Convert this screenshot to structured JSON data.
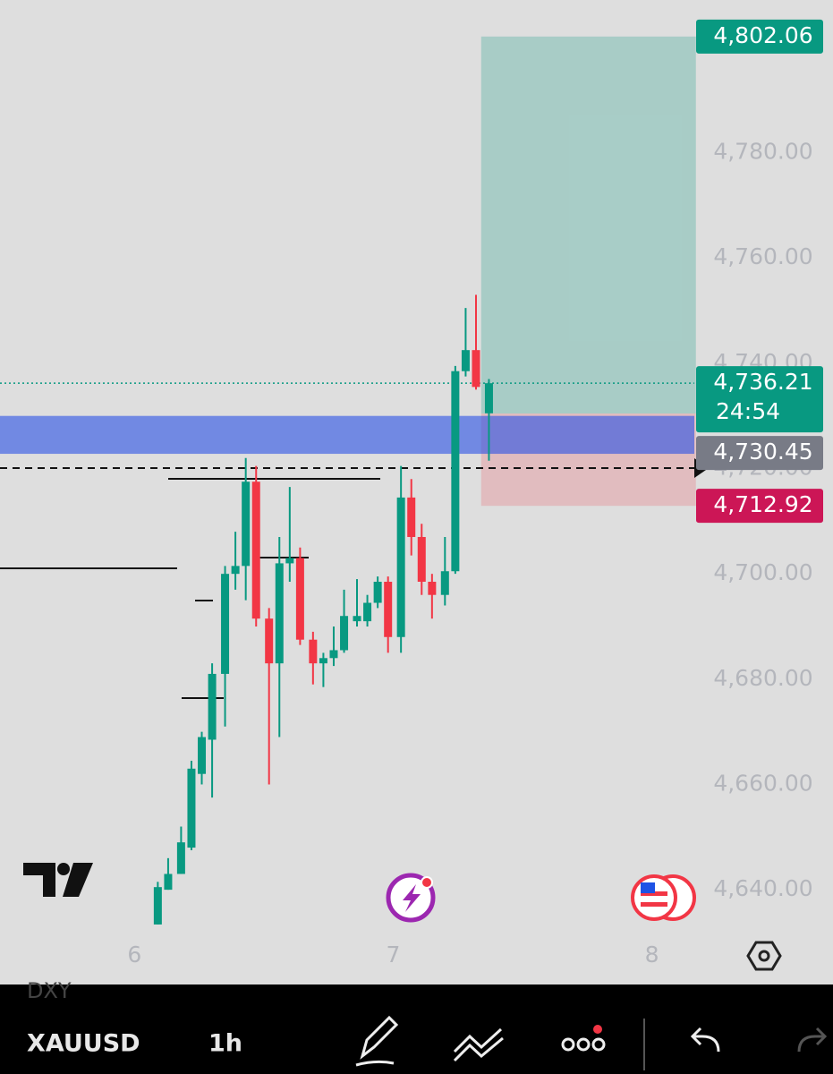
{
  "chart_data": {
    "type": "candlestick",
    "x": [
      6.09,
      6.13,
      6.18,
      6.22,
      6.26,
      6.3,
      6.35,
      6.39,
      6.43,
      6.47,
      6.52,
      6.56,
      6.6,
      6.64,
      6.69,
      6.73,
      6.77,
      6.81,
      6.86,
      6.9,
      6.94,
      6.98,
      7.03,
      7.07,
      7.11,
      7.15,
      7.2,
      7.24,
      7.28,
      7.32,
      7.37
    ],
    "open": [
      4633.4,
      4640,
      4643,
      4648,
      4662,
      4668.5,
      4681,
      4700,
      4701.5,
      4717.5,
      4691.5,
      4683,
      4702,
      4703,
      4687.5,
      4683,
      4684,
      4685.5,
      4691,
      4691,
      4694.5,
      4698.5,
      4688,
      4714.5,
      4707,
      4698.5,
      4696,
      4700.5,
      4738.5,
      4742.5,
      4730.5
    ],
    "high": [
      4641.5,
      4646,
      4652,
      4664.5,
      4670,
      4683,
      4701.5,
      4708,
      4722,
      4720.5,
      4693.5,
      4707,
      4716.5,
      4705,
      4689,
      4685,
      4690,
      4697,
      4699,
      4696,
      4699.5,
      4699.5,
      4720.5,
      4718,
      4709.5,
      4700,
      4707,
      4739.5,
      4750.5,
      4753,
      4737
    ],
    "low": [
      4633.4,
      4640,
      4643,
      4647.5,
      4660,
      4657.5,
      4671,
      4697,
      4695,
      4690,
      4660,
      4669,
      4698.5,
      4686.5,
      4679,
      4678.5,
      4682.5,
      4685,
      4690,
      4690,
      4693.5,
      4685,
      4685,
      4703.5,
      4696,
      4691.5,
      4694,
      4700,
      4737.5,
      4735,
      4721.5
    ],
    "close": [
      4640.5,
      4643,
      4649,
      4663,
      4669,
      4681,
      4700,
      4701.5,
      4717.5,
      4691.5,
      4683,
      4702,
      4703,
      4687.5,
      4683,
      4684,
      4685.5,
      4692,
      4692,
      4694.5,
      4698.5,
      4688,
      4714.5,
      4707,
      4698.5,
      4696,
      4700.5,
      4738.5,
      4742.5,
      4735.5,
      4736.21
    ],
    "up_color": "#089981",
    "down_color": "#f23645",
    "xlim": [
      5.48,
      8.7
    ],
    "xticks": [
      6,
      7,
      8
    ],
    "ylim": [
      4622,
      4809
    ],
    "yticks": [
      {
        "value": 4640,
        "label": "4,640.00"
      },
      {
        "value": 4660,
        "label": "4,660.00"
      },
      {
        "value": 4680,
        "label": "4,680.00"
      },
      {
        "value": 4700,
        "label": "4,700.00"
      },
      {
        "value": 4720,
        "label": "4,720.00"
      },
      {
        "value": 4740,
        "label": "4,740.00"
      },
      {
        "value": 4760,
        "label": "4,760.00"
      },
      {
        "value": 4780,
        "label": "4,780.00"
      }
    ],
    "zone": [
      4722.8,
      4730
    ],
    "dashed_level": 4720.1,
    "position": {
      "x": [
        7.34,
        8.17
      ],
      "target": 4802.06,
      "entry": 4730.45,
      "stop": 4712.92
    },
    "price_tags": [
      {
        "value": 4802.06,
        "label": "4,802.06",
        "color": "#089981"
      },
      {
        "value": 4736.21,
        "label": "4,736.21",
        "color": "#089981"
      },
      {
        "value": 4730.45,
        "label": "4,730.45",
        "color": "#787b86"
      },
      {
        "value": 4712.92,
        "label": "4,712.92",
        "color": "#cc1656"
      }
    ],
    "countdown": "24:54"
  },
  "toolbar": {
    "overlay": "DXY",
    "symbol": "XAUUSD",
    "interval": "1h"
  }
}
